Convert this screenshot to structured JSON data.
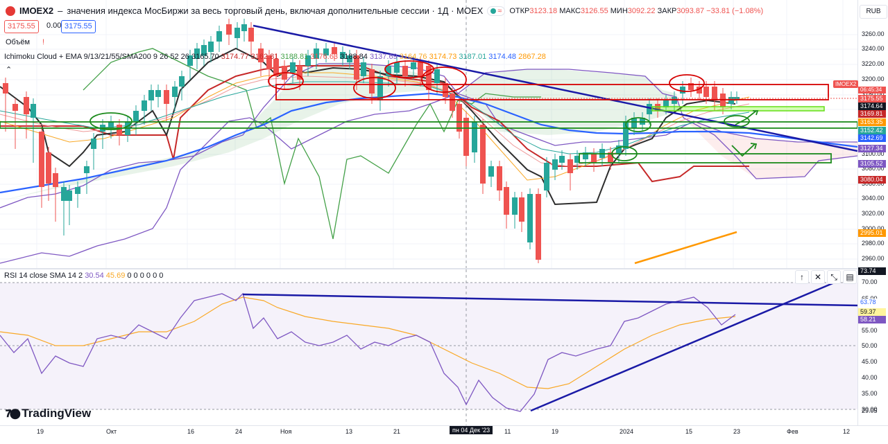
{
  "header": {
    "symbol": "IMOEX2",
    "title": "значения индекса МосБиржи за весь торговый день, включая дополнительные сессии · 1Д · MOEX",
    "ohlc": [
      {
        "key": "ОТКР",
        "value": "3123.18"
      },
      {
        "key": "МАКС",
        "value": "3126.55"
      },
      {
        "key": "МИН",
        "value": "3092.22"
      },
      {
        "key": "ЗАКР",
        "value": "3093.87"
      }
    ],
    "change": "−33.81 (−1.08%)",
    "sell_price": "3175.55",
    "spread": "0.00",
    "buy_price": "3175.55",
    "currency": "RUB"
  },
  "volume_label": "Объём",
  "volume_warning": "!",
  "ichimoku_legend": {
    "name": "Ichimoku Cloud + EMA 9/13/21/55/SMA200 9 26 52 26",
    "values": [
      {
        "v": "3165.70",
        "color": "#131722"
      },
      {
        "v": "3174.77",
        "color": "#c62828"
      },
      {
        "v": "3162.81",
        "color": "#c62828"
      },
      {
        "v": "3188.81",
        "color": "#43a047"
      },
      {
        "v": "3176.63",
        "color": "#ef5350"
      },
      {
        "v": "3188.84",
        "color": "#131722"
      },
      {
        "v": "3137.69",
        "color": "#7e57c2"
      },
      {
        "v": "3164.76",
        "color": "#f9a825"
      },
      {
        "v": "3174.73",
        "color": "#ff9800"
      },
      {
        "v": "3187.01",
        "color": "#26a69a"
      },
      {
        "v": "3174.48",
        "color": "#2962ff"
      },
      {
        "v": "2867.28",
        "color": "#ff9800"
      }
    ]
  },
  "price_axis": {
    "ticks": [
      "3260.00",
      "3240.00",
      "3220.00",
      "3200.00",
      "3180.00",
      "3160.00",
      "3140.00",
      "3120.00",
      "3100.00",
      "3080.00",
      "3060.00",
      "3040.00",
      "3020.00",
      "3000.00",
      "2980.00",
      "2960.00"
    ],
    "tags": [
      {
        "label": "3175.55",
        "color": "#ef5350"
      },
      {
        "label": "3174.64",
        "color": "#131722"
      },
      {
        "label": "3169.81",
        "color": "#c62828"
      },
      {
        "label": "3163.35",
        "color": "#ff9800"
      },
      {
        "label": "3152.42",
        "color": "#26a69a"
      },
      {
        "label": "3142.69",
        "color": "#2962ff"
      },
      {
        "label": "3127.34",
        "color": "#7e57c2"
      },
      {
        "label": "3105.52",
        "color": "#7e57c2"
      },
      {
        "label": "3080.04",
        "color": "#c62828"
      },
      {
        "label": "2995.01",
        "color": "#ff9800"
      }
    ],
    "symbol_tag": "IMOEX2",
    "countdown": "06:45:34"
  },
  "rsi": {
    "legend_name": "RSI 14 close SMA 14 2",
    "rsi_value": "30.54",
    "sma_value": "45.69",
    "zeros": "0 0 0 0 0 0",
    "axis_ticks": [
      "73.74",
      "70.00",
      "65.00",
      "60.00",
      "55.00",
      "50.00",
      "45.00",
      "40.00",
      "35.00",
      "30.00",
      "29.05"
    ],
    "tags": [
      {
        "label": "63.78",
        "color": "#2962ff"
      },
      {
        "label": "59.37",
        "color": "#f9a825"
      },
      {
        "label": "58.21",
        "color": "#7e57c2"
      }
    ],
    "top_tag": "73.74"
  },
  "time_axis": {
    "labels": [
      "19",
      "Окт",
      "16",
      "24",
      "Ноя",
      "13",
      "21",
      "пн 04 Дек '23",
      "11",
      "19",
      "2024",
      "15",
      "23",
      "Фев",
      "12"
    ]
  },
  "logo": "TradingView",
  "buttons": {
    "up": "↑",
    "close": "✕",
    "collapse": "⤡",
    "delete": "🗑"
  }
}
